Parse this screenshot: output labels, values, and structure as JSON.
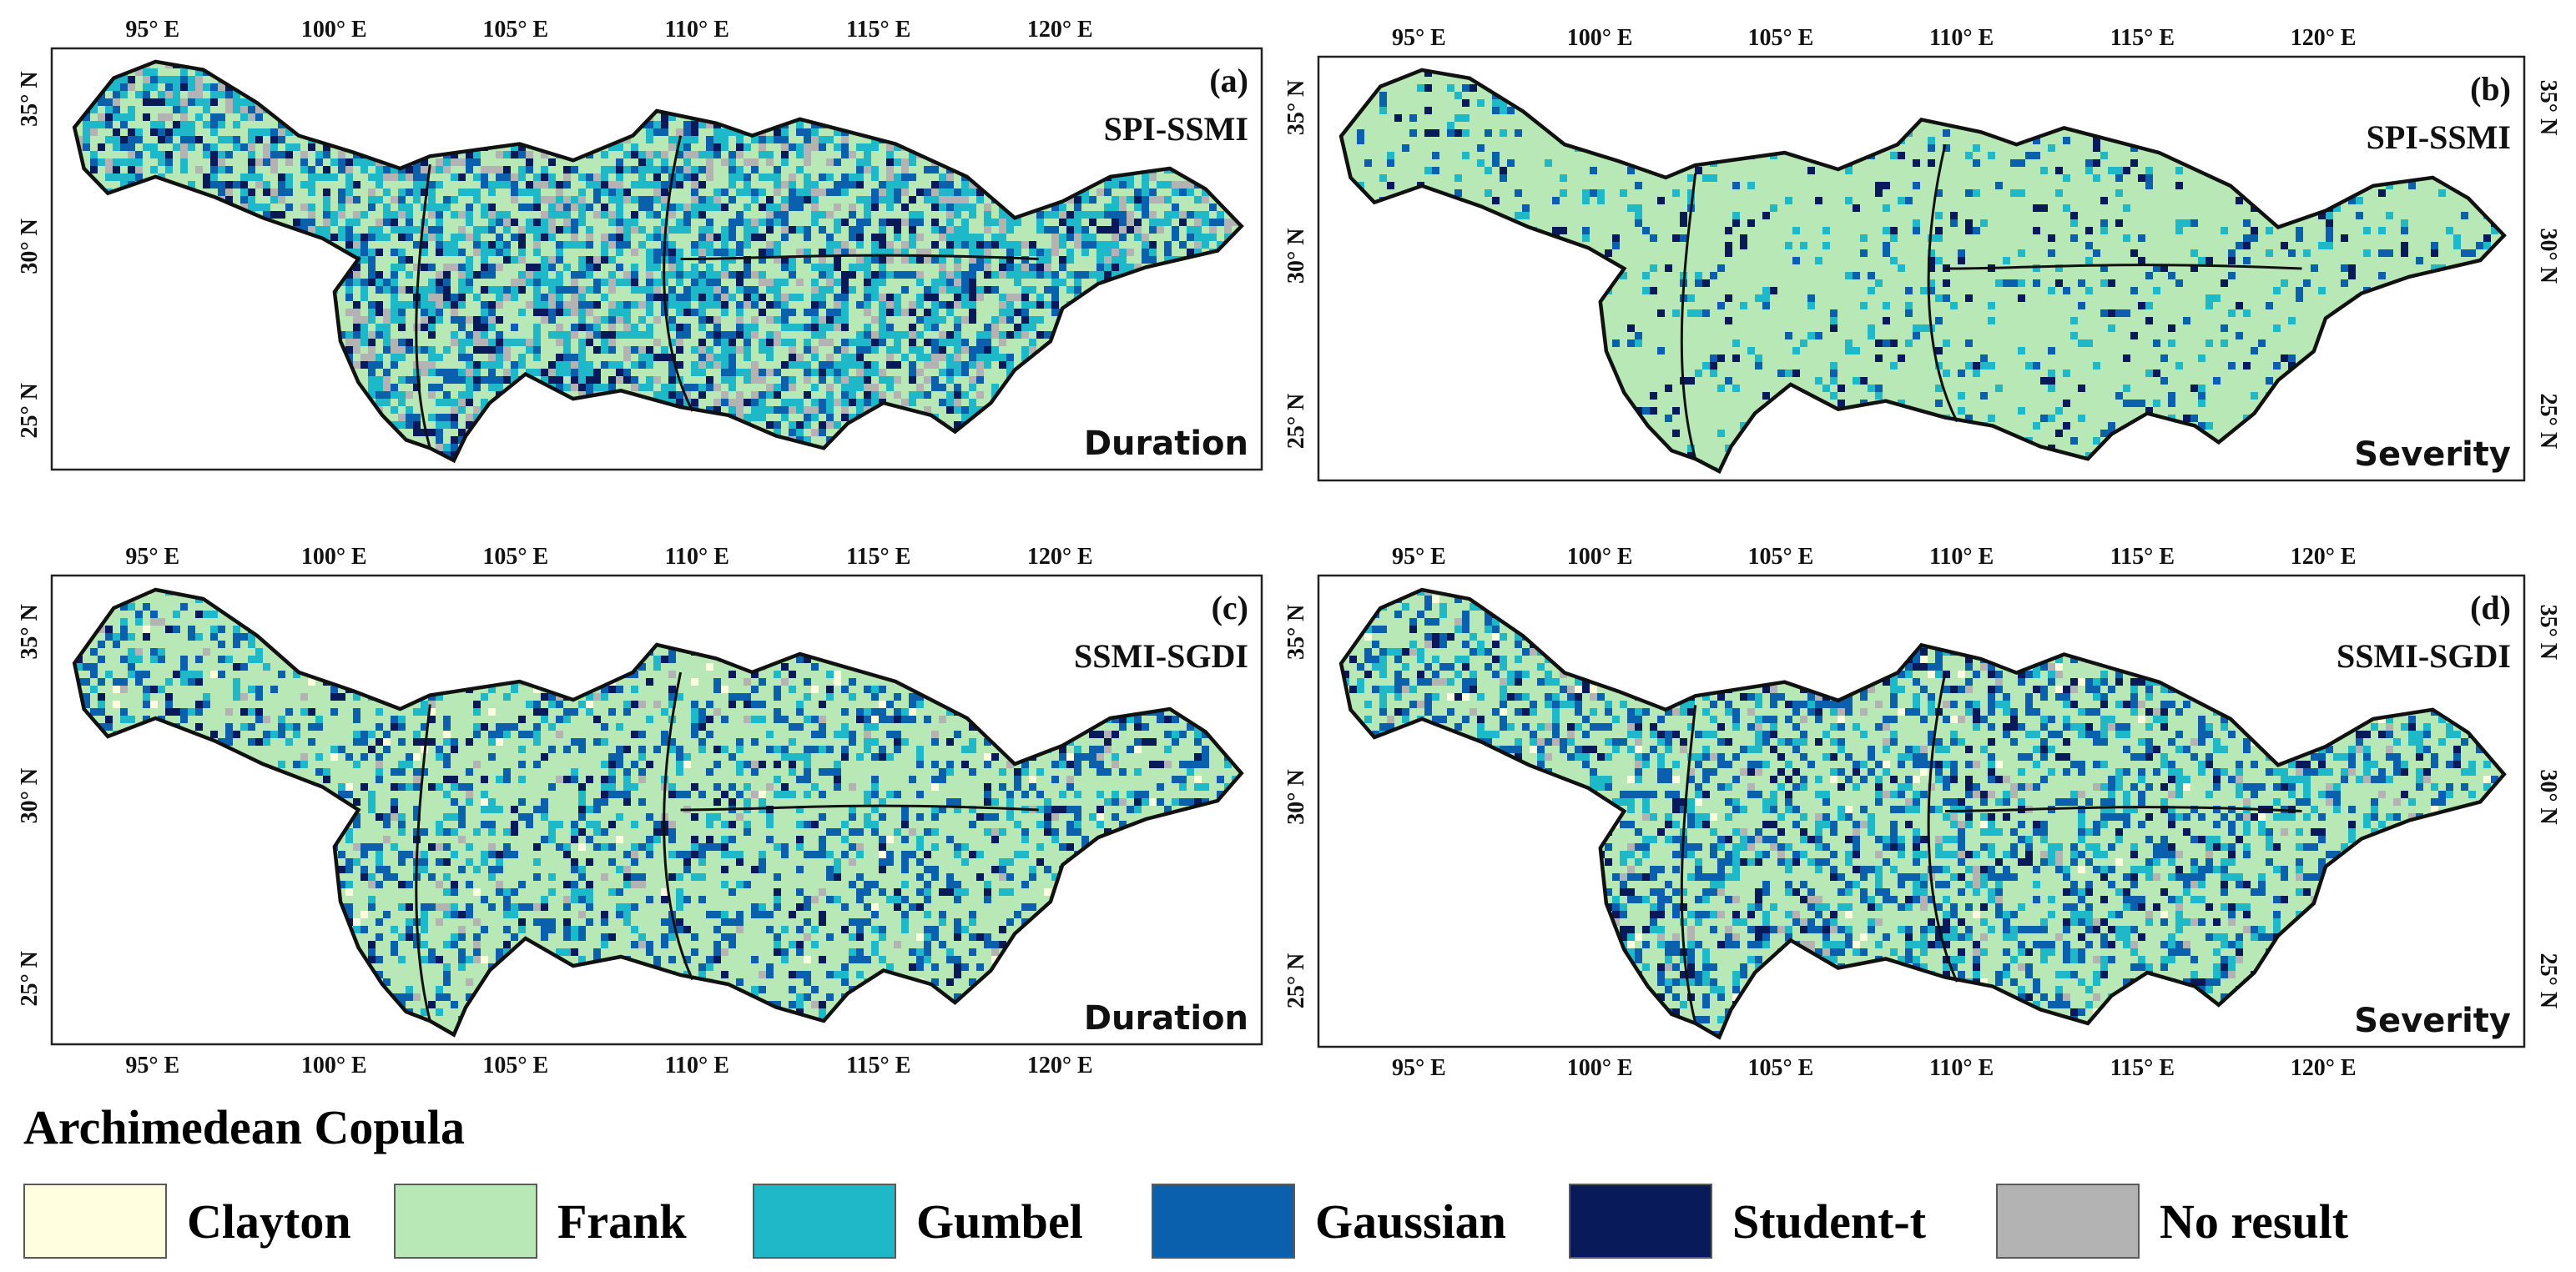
{
  "legend": {
    "title": "Archimedean Copula",
    "items": [
      {
        "label": "Clayton",
        "color": "#ffffe0"
      },
      {
        "label": "Frank",
        "color": "#b7e8b5"
      },
      {
        "label": "Gumbel",
        "color": "#1fb8c8"
      },
      {
        "label": "Gaussian",
        "color": "#0b60ad"
      },
      {
        "label": "Student-t",
        "color": "#081a5a"
      },
      {
        "label": "No result",
        "color": "#b3b3b3"
      }
    ]
  },
  "axes": {
    "lon_labels": [
      "95° E",
      "100° E",
      "105° E",
      "110° E",
      "115° E",
      "120° E"
    ],
    "lat_labels": [
      "25° N",
      "30° N",
      "35° N"
    ]
  },
  "panels": [
    {
      "tag": "(a)",
      "pair": "SPI-SSMI",
      "variable": "Duration",
      "mix": {
        "Clayton": 0.0,
        "Frank": 0.38,
        "Gumbel": 0.28,
        "Gaussian": 0.14,
        "Student-t": 0.08,
        "No result": 0.12
      }
    },
    {
      "tag": "(b)",
      "pair": "SPI-SSMI",
      "variable": "Severity",
      "mix": {
        "Clayton": 0.0,
        "Frank": 0.86,
        "Gumbel": 0.06,
        "Gaussian": 0.05,
        "Student-t": 0.03,
        "No result": 0.0
      }
    },
    {
      "tag": "(c)",
      "pair": "SSMI-SGDI",
      "variable": "Duration",
      "mix": {
        "Clayton": 0.01,
        "Frank": 0.66,
        "Gumbel": 0.1,
        "Gaussian": 0.16,
        "Student-t": 0.05,
        "No result": 0.02
      }
    },
    {
      "tag": "(d)",
      "pair": "SSMI-SGDI",
      "variable": "Severity",
      "mix": {
        "Clayton": 0.01,
        "Frank": 0.58,
        "Gumbel": 0.14,
        "Gaussian": 0.18,
        "Student-t": 0.06,
        "No result": 0.03
      }
    }
  ]
}
